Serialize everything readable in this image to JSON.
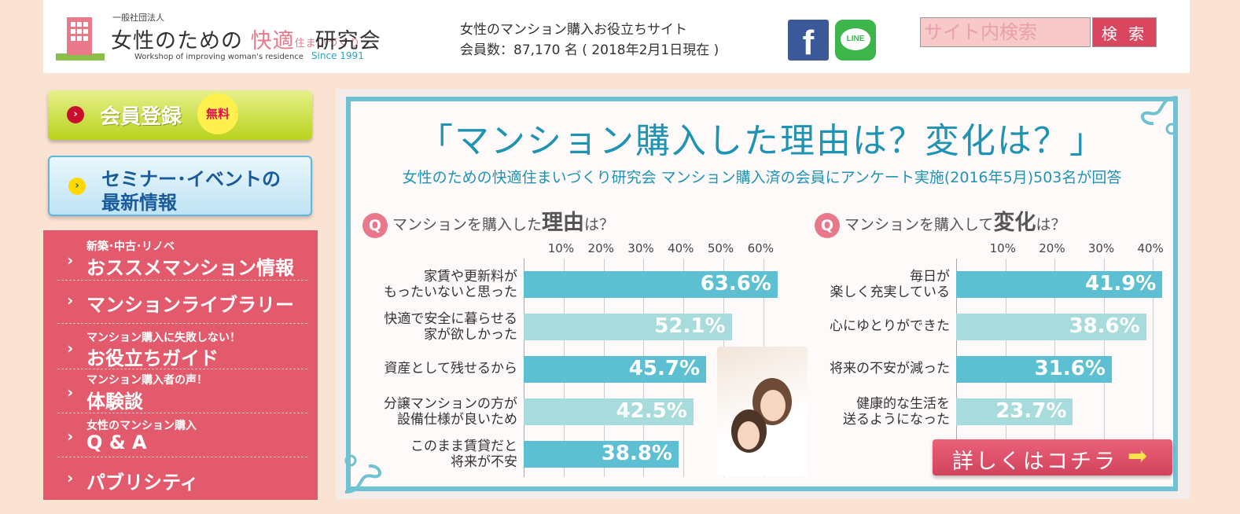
{
  "header": {
    "logo_small": "一般社団法人",
    "logo_main_a": "女性のための",
    "logo_main_b": "快適",
    "logo_main_tiny": "住まいづくり",
    "logo_main_c": "研究会",
    "logo_sub": "Workshop of improving woman's residence",
    "logo_since": "Since 1991",
    "tagline_1": "女性のマンション購入お役立ちサイト",
    "tagline_2": "会員数：87,170 名 ( 2018年2月1日現在 )",
    "facebook_glyph": "f",
    "line_label": "LINE",
    "search_placeholder": "サイト内検索",
    "search_button": "検 索"
  },
  "sidebar": {
    "register_label": "会員登録",
    "register_badge": "無料",
    "seminar_line1": "セミナー･イベントの",
    "seminar_line2": "最新情報",
    "menu": [
      {
        "small": "新築･中古･リノベ",
        "big": "おススメマンション情報"
      },
      {
        "small": "",
        "big": "マンションライブラリー"
      },
      {
        "small": "マンション購入に失敗しない！",
        "big": "お役立ちガイド"
      },
      {
        "small": "マンション購入者の声！",
        "big": "体験談"
      },
      {
        "small": "女性のマンション購入",
        "big": "Q & A"
      },
      {
        "small": "",
        "big": "パブリシティ"
      }
    ]
  },
  "banner": {
    "title": "「マンション購入した理由は？変化は？」",
    "subtitle": "女性のための快適住まいづくり研究会 マンション購入済の会員にアンケート実施(2016年5月)503名が回答",
    "q_mark": "Q",
    "q1_pre": "マンションを購入した",
    "q1_big": "理由",
    "q1_post": "は？",
    "q2_pre": "マンションを購入して",
    "q2_big": "変化",
    "q2_post": "は？",
    "detail_button": "詳しくはコチラ",
    "detail_arrow": "➡"
  },
  "chart_data": [
    {
      "type": "bar",
      "orientation": "horizontal",
      "title": "マンションを購入した理由は？",
      "categories": [
        "家賃や更新料が\nもったいないと思った",
        "快適で安全に暮らせる\n家が欲しかった",
        "資産として残せるから",
        "分譲マンションの方が\n設備仕様が良いため",
        "このまま賃貸だと\n将来が不安"
      ],
      "values": [
        63.6,
        52.1,
        45.7,
        42.5,
        38.8
      ],
      "value_labels": [
        "63.6%",
        "52.1%",
        "45.7%",
        "42.5%",
        "38.8%"
      ],
      "ticks": [
        "10%",
        "20%",
        "30%",
        "40%",
        "50%",
        "60%"
      ],
      "xlim": [
        0,
        65
      ],
      "grid": true
    },
    {
      "type": "bar",
      "orientation": "horizontal",
      "title": "マンションを購入して変化は？",
      "categories": [
        "毎日が\n楽しく充実している",
        "心にゆとりができた",
        "将来の不安が減った",
        "健康的な生活を\n送るようになった"
      ],
      "values": [
        41.9,
        38.6,
        31.6,
        23.7
      ],
      "value_labels": [
        "41.9%",
        "38.6%",
        "31.6%",
        "23.7%"
      ],
      "ticks": [
        "10%",
        "20%",
        "30%",
        "40%"
      ],
      "xlim": [
        0,
        42
      ],
      "grid": true
    }
  ],
  "colors": {
    "bar_dark": "#5cc0d2",
    "bar_light": "#a8dbdb",
    "accent_pink": "#e25a6b",
    "title_blue": "#1f93b4"
  }
}
